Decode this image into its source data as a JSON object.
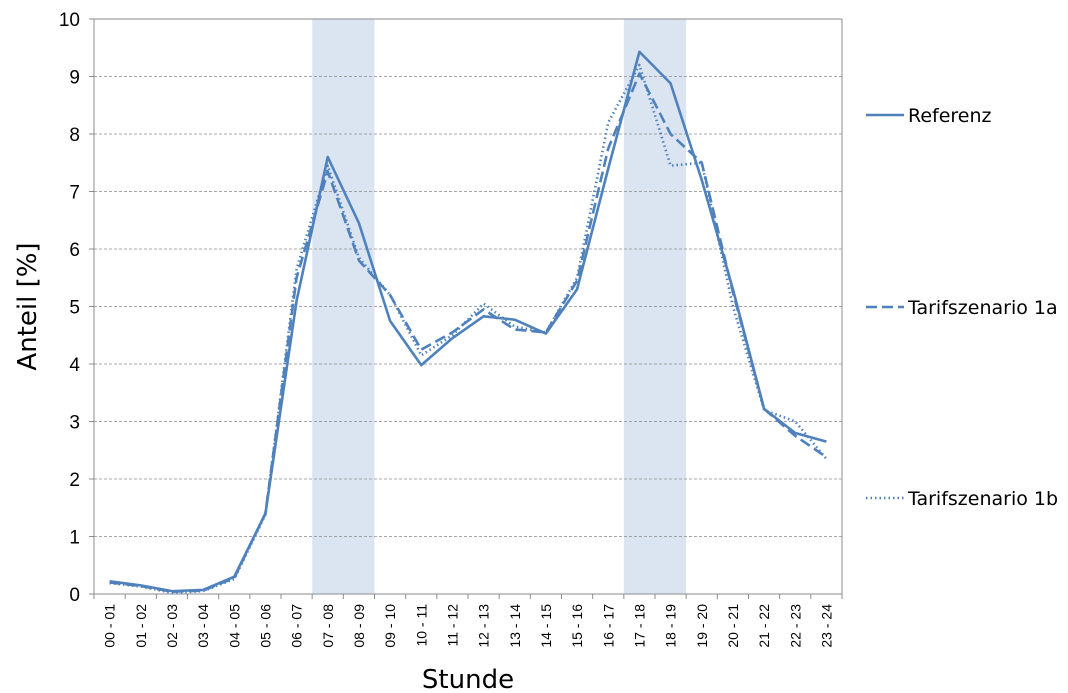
{
  "chart_data": {
    "type": "line",
    "title": "",
    "xlabel": "Stunde",
    "ylabel": "Anteil [%]",
    "ylim": [
      0,
      10
    ],
    "yticks": [
      0,
      1,
      2,
      3,
      4,
      5,
      6,
      7,
      8,
      9,
      10
    ],
    "grid": "horizontal dashed",
    "legend_position": "right",
    "categories": [
      "00 - 01",
      "01 - 02",
      "02 - 03",
      "03 - 04",
      "04 - 05",
      "05 - 06",
      "06 - 07",
      "07 - 08",
      "08 - 09",
      "09 - 10",
      "10 - 11",
      "11 - 12",
      "12 - 13",
      "13 - 14",
      "14 - 15",
      "15 - 16",
      "16 - 17",
      "17 - 18",
      "18 - 19",
      "19 - 20",
      "20 - 21",
      "21 - 22",
      "22 - 23",
      "23 - 24"
    ],
    "shaded_ranges": [
      {
        "from": "07 - 08",
        "to": "08 - 09"
      },
      {
        "from": "17 - 18",
        "to": "18 - 19"
      }
    ],
    "series": [
      {
        "name": "Referenz",
        "style": "solid",
        "color": "#4f81bd",
        "values": [
          0.22,
          0.15,
          0.05,
          0.07,
          0.3,
          1.4,
          5.1,
          7.6,
          6.45,
          4.75,
          3.98,
          4.45,
          4.83,
          4.77,
          4.53,
          5.3,
          7.4,
          9.43,
          8.88,
          7.2,
          5.3,
          3.22,
          2.8,
          2.65
        ]
      },
      {
        "name": "Tarifszenario 1a",
        "style": "dashed",
        "color": "#4f81bd",
        "values": [
          0.2,
          0.14,
          0.04,
          0.06,
          0.28,
          1.4,
          5.5,
          7.35,
          5.8,
          5.2,
          4.25,
          4.55,
          4.95,
          4.6,
          4.55,
          5.45,
          7.75,
          9.05,
          8.0,
          7.5,
          5.25,
          3.22,
          2.75,
          2.38
        ]
      },
      {
        "name": "Tarifszenario 1b",
        "style": "dotted",
        "color": "#4f81bd",
        "values": [
          0.19,
          0.13,
          0.02,
          0.05,
          0.26,
          1.38,
          5.65,
          7.45,
          5.85,
          5.2,
          4.15,
          4.5,
          5.05,
          4.65,
          4.55,
          5.5,
          8.2,
          9.2,
          7.45,
          7.5,
          5.0,
          3.2,
          3.0,
          2.35
        ]
      }
    ]
  }
}
